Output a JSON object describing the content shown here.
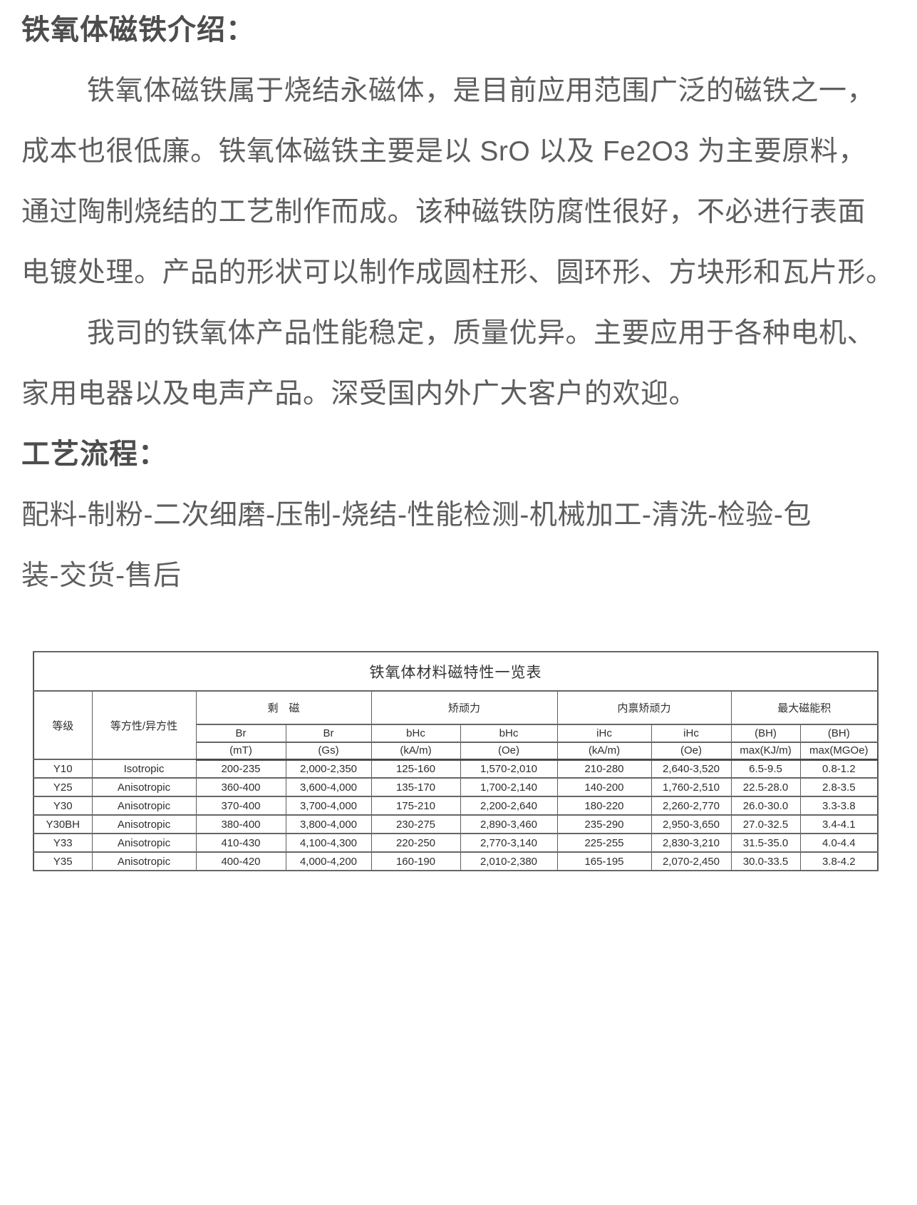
{
  "intro": {
    "heading": "铁氧体磁铁介绍：",
    "paragraphs": [
      {
        "indent_first": true,
        "lines": [
          "铁氧体磁铁属于烧结永磁体，是目前应用范围广泛的磁铁之一，",
          "成本也很低廉。铁氧体磁铁主要是以 SrO 以及 Fe2O3 为主要原料，",
          "通过陶制烧结的工艺制作而成。该种磁铁防腐性很好，不必进行表面",
          "电镀处理。产品的形状可以制作成圆柱形、圆环形、方块形和瓦片形。"
        ]
      },
      {
        "indent_first": true,
        "lines": [
          "我司的铁氧体产品性能稳定，质量优异。主要应用于各种电机、",
          "家用电器以及电声产品。深受国内外广大客户的欢迎。"
        ]
      }
    ]
  },
  "process": {
    "heading": "工艺流程：",
    "lines": [
      "配料-制粉-二次细磨-压制-烧结-性能检测-机械加工-清洗-检验-包",
      "装-交货-售后"
    ]
  },
  "table": {
    "title": "铁氧体材料磁特性一览表",
    "grade_header": "等级",
    "isotropy_header": "等方性/异方性",
    "group_row": [
      "剩　磁",
      "矫顽力",
      "内禀矫顽力",
      "最大磁能积"
    ],
    "sym_row": [
      "Br",
      "Br",
      "bHc",
      "bHc",
      "iHc",
      "iHc",
      "(BH)",
      "(BH)"
    ],
    "unit_row": [
      "(mT)",
      "(Gs)",
      "(kA/m)",
      "(Oe)",
      "(kA/m)",
      "(Oe)",
      "max(KJ/m)",
      "max(MGOe)"
    ],
    "rows": [
      [
        "Y10",
        "Isotropic",
        "200-235",
        "2,000-2,350",
        "125-160",
        "1,570-2,010",
        "210-280",
        "2,640-3,520",
        "6.5-9.5",
        "0.8-1.2"
      ],
      [
        "Y25",
        "Anisotropic",
        "360-400",
        "3,600-4,000",
        "135-170",
        "1,700-2,140",
        "140-200",
        "1,760-2,510",
        "22.5-28.0",
        "2.8-3.5"
      ],
      [
        "Y30",
        "Anisotropic",
        "370-400",
        "3,700-4,000",
        "175-210",
        "2,200-2,640",
        "180-220",
        "2,260-2,770",
        "26.0-30.0",
        "3.3-3.8"
      ],
      [
        "Y30BH",
        "Anisotropic",
        "380-400",
        "3,800-4,000",
        "230-275",
        "2,890-3,460",
        "235-290",
        "2,950-3,650",
        "27.0-32.5",
        "3.4-4.1"
      ],
      [
        "Y33",
        "Anisotropic",
        "410-430",
        "4,100-4,300",
        "220-250",
        "2,770-3,140",
        "225-255",
        "2,830-3,210",
        "31.5-35.0",
        "4.0-4.4"
      ],
      [
        "Y35",
        "Anisotropic",
        "400-420",
        "4,000-4,200",
        "160-190",
        "2,010-2,380",
        "165-195",
        "2,070-2,450",
        "30.0-33.5",
        "3.8-4.2"
      ]
    ],
    "colors": {
      "body_text": "#5e5e5e",
      "heading_text": "#4d4d4d",
      "table_text": "#2e2e2e",
      "table_border": "#5f5f5f",
      "background": "#ffffff"
    }
  }
}
